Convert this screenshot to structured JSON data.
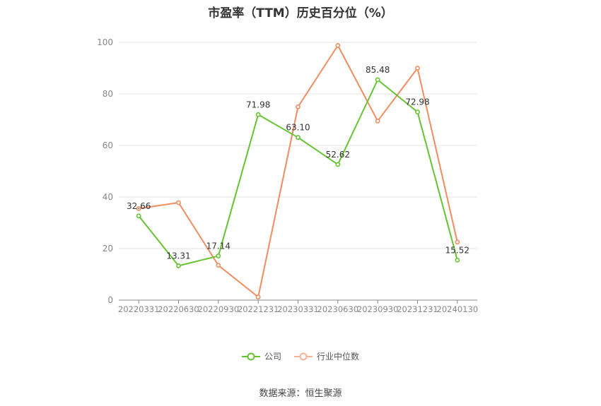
{
  "chart_data": {
    "type": "line",
    "title": "市盈率（TTM）历史百分位（%）",
    "xlabel": "",
    "ylabel": "",
    "ylim": [
      0,
      100
    ],
    "yticks": [
      0,
      20,
      40,
      60,
      80,
      100
    ],
    "grid": true,
    "legend_position": "bottom",
    "categories": [
      "20220331",
      "20220630",
      "20220930",
      "20221231",
      "20230331",
      "20230630",
      "20230930",
      "20231231",
      "20240130"
    ],
    "series": [
      {
        "name": "公司",
        "color": "#66c332",
        "values": [
          32.66,
          13.31,
          17.14,
          71.98,
          63.1,
          52.62,
          85.48,
          72.98,
          15.52
        ],
        "labels": [
          "32.66",
          "13.31",
          "17.14",
          "71.98",
          "63.10",
          "52.62",
          "85.48",
          "72.98",
          "15.52"
        ]
      },
      {
        "name": "行业中位数",
        "color": "#f08c5f",
        "values": [
          35.5,
          37.8,
          13.5,
          1.2,
          75.0,
          98.8,
          69.5,
          90.0,
          22.5
        ]
      }
    ]
  },
  "source": "数据来源：恒生聚源"
}
